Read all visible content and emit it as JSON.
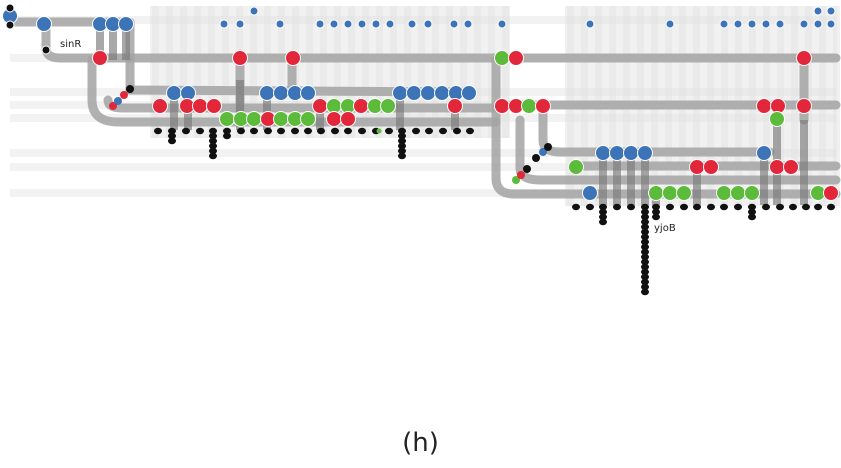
{
  "figure": {
    "labels": {
      "gene_a": "sinR",
      "gene_b": "yjoB"
    },
    "caption": "(h)"
  },
  "colors": {
    "background": "#ffffff",
    "grid_light": "#f1f1f1",
    "grid_mid": "#e3e3e3",
    "track": "#a3a3a3",
    "track_dark": "#7a7a7a",
    "blue": "#3d74b8",
    "red": "#e2273a",
    "green": "#5dbb3c",
    "black": "#111111"
  }
}
